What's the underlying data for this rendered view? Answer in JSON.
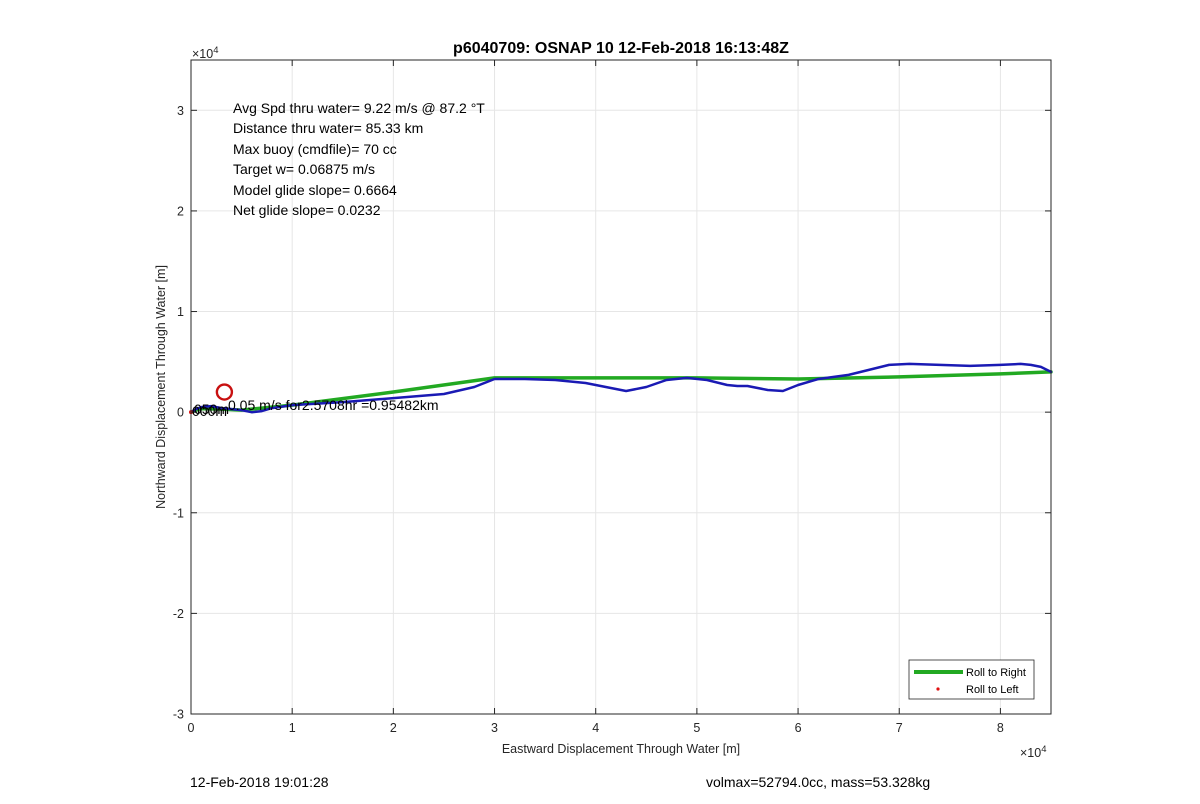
{
  "chart_data": {
    "type": "line",
    "title": "p6040709: OSNAP 10 12-Feb-2018 16:13:48Z",
    "xlabel": "Eastward Displacement Through Water [m]",
    "ylabel": "Northward Displacement Through Water [m]",
    "x_exponent_label": "×10",
    "x_exponent_power": "4",
    "y_exponent_label": "×10",
    "y_exponent_power": "4",
    "xlim": [
      0,
      85000
    ],
    "ylim": [
      -30000,
      35000
    ],
    "xticks": [
      0,
      10000,
      20000,
      30000,
      40000,
      50000,
      60000,
      70000,
      80000
    ],
    "xtick_labels": [
      "0",
      "1",
      "2",
      "3",
      "4",
      "5",
      "6",
      "7",
      "8"
    ],
    "yticks": [
      -30000,
      -20000,
      -10000,
      0,
      10000,
      20000,
      30000
    ],
    "ytick_labels": [
      "-3",
      "-2",
      "-1",
      "0",
      "1",
      "2",
      "3"
    ],
    "grid": true,
    "legend_position": "bottom-right",
    "legend": [
      {
        "label": "Roll to Right",
        "color": "#22a922",
        "style": "line"
      },
      {
        "label": "Roll to Left",
        "color": "#e01010",
        "style": "dot"
      }
    ],
    "annotations": [
      "Avg Spd thru water=  9.22 m/s @  87.2 °T",
      "Distance thru water= 85.33 km",
      "Max buoy (cmdfile)= 70 cc",
      "Target w= 0.06875 m/s",
      "Model glide slope= 0.6664",
      "Net glide slope= 0.0232"
    ],
    "overlap_label": "0.05 m/s for2.5708hr =0.95482km",
    "start_labels": [
      "000m",
      "050m"
    ],
    "series": [
      {
        "color": "#22a922",
        "x": [
          0,
          500,
          1000,
          3000,
          5000,
          10000,
          20000,
          30000,
          40000,
          50000,
          60000,
          70000,
          80000,
          85000
        ],
        "y": [
          0,
          200,
          350,
          300,
          200,
          700,
          2000,
          3400,
          3400,
          3400,
          3300,
          3500,
          3800,
          4000
        ]
      },
      {
        "color": "#1a1ab4",
        "x": [
          0,
          500,
          1000,
          2000,
          3000,
          4000,
          5000,
          6000,
          7000,
          8000,
          10000,
          15000,
          20000,
          25000,
          28000,
          30000,
          33000,
          36000,
          39000,
          41000,
          43000,
          45000,
          47000,
          49000,
          51000,
          53000,
          54000,
          55000,
          57000,
          58500,
          60000,
          62000,
          65000,
          67000,
          69000,
          71000,
          74000,
          77000,
          80000,
          82000,
          83000,
          84000,
          85000
        ],
        "y": [
          0,
          300,
          500,
          600,
          400,
          300,
          200,
          0,
          100,
          400,
          700,
          1000,
          1400,
          1800,
          2500,
          3300,
          3300,
          3200,
          2900,
          2500,
          2100,
          2500,
          3200,
          3400,
          3200,
          2700,
          2600,
          2600,
          2200,
          2100,
          2700,
          3300,
          3700,
          4200,
          4700,
          4800,
          4700,
          4600,
          4700,
          4800,
          4700,
          4500,
          4000
        ]
      }
    ],
    "markers": [
      {
        "type": "open-circle",
        "color": "#c81010",
        "x": 3300,
        "y": 2000
      }
    ]
  },
  "footer": {
    "left": "12-Feb-2018 19:01:28",
    "right": "volmax=52794.0cc, mass=53.328kg"
  }
}
